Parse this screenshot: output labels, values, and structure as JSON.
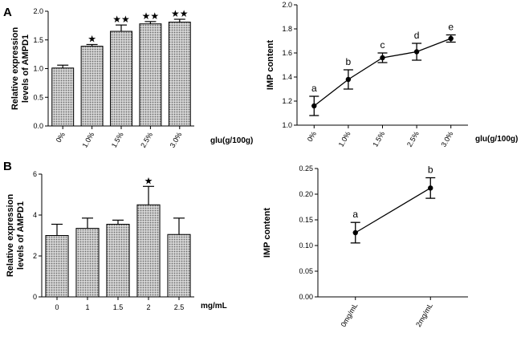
{
  "panels": [
    {
      "letter": "A"
    },
    {
      "letter": "B"
    }
  ],
  "chart_data": [
    {
      "type": "bar",
      "categories": [
        "0%",
        "1.0%",
        "1.5%",
        "2.5%",
        "3.0%"
      ],
      "values": [
        1.01,
        1.39,
        1.65,
        1.78,
        1.81
      ],
      "errors": [
        0.05,
        0.03,
        0.11,
        0.04,
        0.05
      ],
      "annotations": [
        "",
        "★",
        "★★",
        "★★",
        "★★"
      ],
      "xlabel": "glu(g/100g)",
      "ylabel_lines": [
        "Relative expression",
        "levels of AMPD1"
      ],
      "ylim": [
        0.0,
        2.0
      ],
      "yticks": [
        "0.0",
        "0.5",
        "1.0",
        "1.5",
        "2.0"
      ],
      "bar_fill": "#b5b5b5"
    },
    {
      "type": "line",
      "categories": [
        "0%",
        "1.0%",
        "1.5%",
        "2.5%",
        "3.0%"
      ],
      "values": [
        1.16,
        1.38,
        1.56,
        1.61,
        1.72
      ],
      "errors": [
        0.08,
        0.08,
        0.04,
        0.07,
        0.03
      ],
      "annotations": [
        "a",
        "b",
        "c",
        "d",
        "e"
      ],
      "xlabel": "glu(g/100g)",
      "ylabel": "IMP content",
      "ylim": [
        1.0,
        2.0
      ],
      "yticks": [
        "1.0",
        "1.2",
        "1.4",
        "1.6",
        "1.8",
        "2.0"
      ]
    },
    {
      "type": "bar",
      "categories": [
        "0",
        "1",
        "1.5",
        "2",
        "2.5"
      ],
      "values": [
        3.0,
        3.35,
        3.55,
        4.5,
        3.05
      ],
      "errors": [
        0.55,
        0.5,
        0.2,
        0.9,
        0.8
      ],
      "annotations": [
        "",
        "",
        "",
        "★",
        ""
      ],
      "xlabel": "mg/mL",
      "ylabel_lines": [
        "Relative expression",
        "levels of AMPD1"
      ],
      "ylim": [
        0,
        6
      ],
      "yticks": [
        "0",
        "2",
        "4",
        "6"
      ],
      "bar_fill": "#b5b5b5"
    },
    {
      "type": "line",
      "categories": [
        "0mg/mL",
        "2mg/mL"
      ],
      "values": [
        0.125,
        0.212
      ],
      "errors": [
        0.02,
        0.02
      ],
      "annotations": [
        "a",
        "b"
      ],
      "xlabel": "",
      "ylabel": "IMP content",
      "ylim": [
        0.0,
        0.25
      ],
      "yticks": [
        "0.00",
        "0.05",
        "0.10",
        "0.15",
        "0.20",
        "0.25"
      ]
    }
  ]
}
